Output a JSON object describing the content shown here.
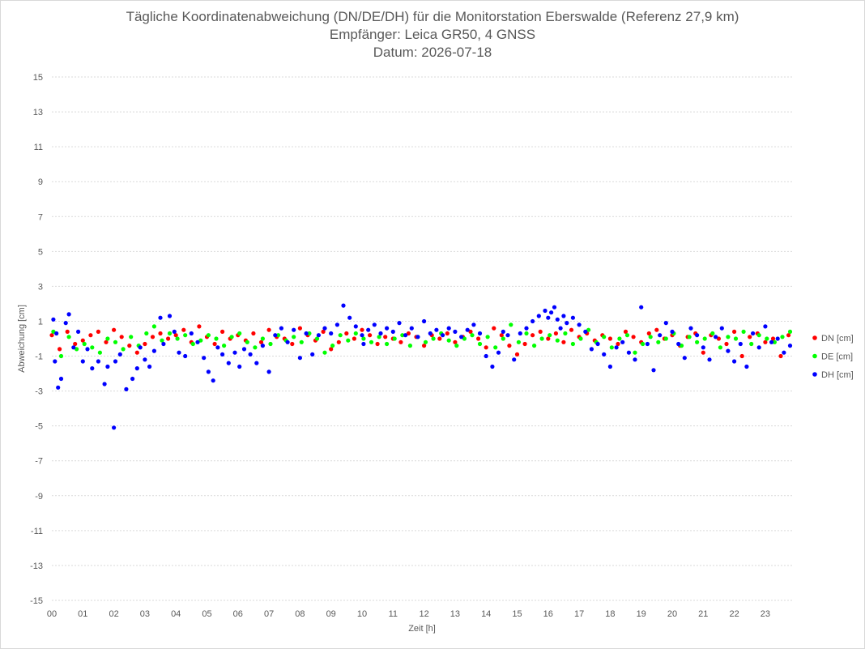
{
  "chart_data": {
    "type": "scatter",
    "title": "Tägliche Koordinatenabweichung (DN/DE/DH) für die Monitorstation Eberswalde (Referenz 27,9 km)",
    "subtitle": "Empfänger: Leica GR50, 4 GNSS",
    "date_line": "Datum: 2026-07-18",
    "xlabel": "Zeit [h]",
    "ylabel": "Abweichung [cm]",
    "xlim": [
      0,
      24
    ],
    "ylim": [
      -15,
      15
    ],
    "x_ticks": [
      "00",
      "01",
      "02",
      "03",
      "04",
      "05",
      "06",
      "07",
      "08",
      "09",
      "10",
      "11",
      "12",
      "13",
      "14",
      "15",
      "16",
      "17",
      "18",
      "19",
      "20",
      "21",
      "22",
      "23"
    ],
    "y_ticks": [
      15,
      13,
      11,
      9,
      7,
      5,
      3,
      1,
      -1,
      -3,
      -5,
      -7,
      -9,
      -11,
      -13,
      -15
    ],
    "grid": true,
    "legend_position": "right",
    "series": [
      {
        "name": "DN [cm]",
        "color": "#ff0000",
        "x": [
          0.0,
          0.25,
          0.5,
          0.75,
          1.0,
          1.25,
          1.5,
          1.75,
          2.0,
          2.25,
          2.5,
          2.75,
          3.0,
          3.25,
          3.5,
          3.75,
          4.0,
          4.25,
          4.5,
          4.75,
          5.0,
          5.25,
          5.5,
          5.75,
          6.0,
          6.25,
          6.5,
          6.75,
          7.0,
          7.25,
          7.5,
          7.75,
          8.0,
          8.25,
          8.5,
          8.75,
          9.0,
          9.25,
          9.5,
          9.75,
          10.0,
          10.25,
          10.5,
          10.75,
          11.0,
          11.25,
          11.5,
          11.75,
          12.0,
          12.25,
          12.5,
          12.75,
          13.0,
          13.25,
          13.5,
          13.75,
          14.0,
          14.25,
          14.5,
          14.75,
          15.0,
          15.25,
          15.5,
          15.75,
          16.0,
          16.25,
          16.5,
          16.75,
          17.0,
          17.25,
          17.5,
          17.75,
          18.0,
          18.25,
          18.5,
          18.75,
          19.0,
          19.25,
          19.5,
          19.75,
          20.0,
          20.25,
          20.5,
          20.75,
          21.0,
          21.25,
          21.5,
          21.75,
          22.0,
          22.25,
          22.5,
          22.75,
          23.0,
          23.25,
          23.5,
          23.75
        ],
        "y": [
          0.2,
          -0.6,
          0.4,
          -0.3,
          -0.1,
          0.2,
          0.4,
          -0.2,
          0.5,
          0.1,
          -0.4,
          -0.8,
          -0.3,
          0.1,
          0.3,
          0.0,
          0.2,
          0.5,
          -0.2,
          0.7,
          0.1,
          -0.3,
          0.4,
          0.0,
          0.2,
          -0.1,
          0.3,
          -0.2,
          0.5,
          0.1,
          0.0,
          -0.3,
          0.6,
          0.2,
          -0.1,
          0.4,
          -0.6,
          -0.2,
          0.3,
          0.0,
          0.5,
          0.2,
          -0.3,
          0.1,
          0.0,
          -0.2,
          0.3,
          0.1,
          -0.4,
          0.2,
          0.0,
          0.3,
          -0.2,
          0.1,
          0.4,
          0.0,
          -0.5,
          0.6,
          0.2,
          -0.4,
          -0.9,
          -0.3,
          0.2,
          0.4,
          0.0,
          0.3,
          -0.2,
          0.5,
          0.1,
          0.3,
          -0.1,
          0.2,
          0.0,
          -0.3,
          0.4,
          0.1,
          -0.2,
          0.3,
          0.5,
          0.0,
          0.2,
          -0.4,
          0.1,
          0.3,
          -0.8,
          0.2,
          0.0,
          -0.3,
          0.4,
          -1.0,
          0.1,
          0.3,
          -0.2,
          0.0,
          -1.0,
          0.2
        ]
      },
      {
        "name": "DE [cm]",
        "color": "#00ff00",
        "x": [
          0.05,
          0.3,
          0.55,
          0.8,
          1.05,
          1.3,
          1.55,
          1.8,
          2.05,
          2.3,
          2.55,
          2.8,
          3.05,
          3.3,
          3.55,
          3.8,
          4.05,
          4.3,
          4.55,
          4.8,
          5.05,
          5.3,
          5.55,
          5.8,
          6.05,
          6.3,
          6.55,
          6.8,
          7.05,
          7.3,
          7.55,
          7.8,
          8.05,
          8.3,
          8.55,
          8.8,
          9.05,
          9.3,
          9.55,
          9.8,
          10.05,
          10.3,
          10.55,
          10.8,
          11.05,
          11.3,
          11.55,
          11.8,
          12.05,
          12.3,
          12.55,
          12.8,
          13.05,
          13.3,
          13.55,
          13.8,
          14.05,
          14.3,
          14.55,
          14.8,
          15.05,
          15.3,
          15.55,
          15.8,
          16.05,
          16.3,
          16.55,
          16.8,
          17.05,
          17.3,
          17.55,
          17.8,
          18.05,
          18.3,
          18.55,
          18.8,
          19.05,
          19.3,
          19.55,
          19.8,
          20.05,
          20.3,
          20.55,
          20.8,
          21.05,
          21.3,
          21.55,
          21.8,
          22.05,
          22.3,
          22.55,
          22.8,
          23.05,
          23.3,
          23.55,
          23.8
        ],
        "y": [
          0.4,
          -1.0,
          0.1,
          -0.6,
          -0.3,
          -0.5,
          -0.8,
          0.0,
          -0.2,
          -0.6,
          0.1,
          -0.4,
          0.3,
          0.7,
          -0.1,
          0.3,
          0.0,
          0.2,
          -0.3,
          -0.1,
          0.2,
          0.0,
          -0.4,
          0.1,
          0.3,
          -0.2,
          -0.5,
          0.0,
          -0.3,
          0.2,
          -0.1,
          0.1,
          -0.2,
          0.3,
          0.0,
          -0.8,
          -0.4,
          0.2,
          -0.1,
          0.3,
          0.0,
          -0.2,
          0.1,
          -0.3,
          0.0,
          0.2,
          -0.4,
          0.1,
          -0.2,
          0.0,
          0.3,
          -0.1,
          -0.4,
          0.0,
          0.2,
          -0.3,
          0.1,
          -0.5,
          0.0,
          0.8,
          -0.2,
          0.3,
          -0.4,
          0.0,
          0.2,
          -0.1,
          0.3,
          -0.3,
          0.0,
          0.5,
          -0.2,
          0.1,
          -0.5,
          0.0,
          0.2,
          -0.8,
          -0.3,
          0.1,
          -0.2,
          0.0,
          0.3,
          -0.4,
          0.1,
          -0.2,
          0.0,
          0.3,
          -0.5,
          0.1,
          0.0,
          0.4,
          -0.3,
          0.2,
          0.0,
          -0.2,
          0.1,
          0.4
        ]
      },
      {
        "name": "DH [cm]",
        "color": "#0000ff",
        "x": [
          0.05,
          0.1,
          0.15,
          0.2,
          0.3,
          0.45,
          0.55,
          0.7,
          0.85,
          1.0,
          1.15,
          1.3,
          1.5,
          1.7,
          1.8,
          2.0,
          2.05,
          2.2,
          2.4,
          2.6,
          2.75,
          2.85,
          3.0,
          3.15,
          3.3,
          3.5,
          3.6,
          3.8,
          3.95,
          4.1,
          4.3,
          4.5,
          4.7,
          4.9,
          5.05,
          5.2,
          5.35,
          5.5,
          5.7,
          5.9,
          6.05,
          6.2,
          6.4,
          6.6,
          6.8,
          7.0,
          7.2,
          7.4,
          7.6,
          7.8,
          8.0,
          8.2,
          8.4,
          8.6,
          8.8,
          9.0,
          9.2,
          9.4,
          9.6,
          9.8,
          10.0,
          10.05,
          10.2,
          10.4,
          10.6,
          10.8,
          11.0,
          11.2,
          11.4,
          11.6,
          11.8,
          12.0,
          12.2,
          12.4,
          12.6,
          12.8,
          13.0,
          13.2,
          13.4,
          13.6,
          13.8,
          14.0,
          14.2,
          14.4,
          14.55,
          14.7,
          14.9,
          15.1,
          15.3,
          15.5,
          15.7,
          15.9,
          16.0,
          16.1,
          16.2,
          16.3,
          16.4,
          16.5,
          16.6,
          16.8,
          17.0,
          17.2,
          17.4,
          17.6,
          17.8,
          18.0,
          18.2,
          18.4,
          18.6,
          18.8,
          19.0,
          19.2,
          19.4,
          19.6,
          19.8,
          20.0,
          20.2,
          20.4,
          20.6,
          20.8,
          21.0,
          21.2,
          21.4,
          21.6,
          21.8,
          22.0,
          22.2,
          22.4,
          22.6,
          22.8,
          23.0,
          23.2,
          23.4,
          23.6,
          23.8
        ],
        "y": [
          1.1,
          -1.3,
          0.3,
          -2.8,
          -2.3,
          0.9,
          1.4,
          -0.5,
          0.4,
          -1.3,
          -0.6,
          -1.7,
          -1.3,
          -2.6,
          -1.6,
          -5.1,
          -1.3,
          -0.9,
          -2.9,
          -2.3,
          -1.7,
          -0.5,
          -1.2,
          -1.6,
          -0.7,
          1.2,
          -0.3,
          1.3,
          0.4,
          -0.8,
          -1.0,
          0.3,
          -0.2,
          -1.1,
          -1.9,
          -2.4,
          -0.5,
          -0.9,
          -1.4,
          -0.8,
          -1.6,
          -0.6,
          -0.9,
          -1.4,
          -0.4,
          -1.9,
          0.2,
          0.6,
          -0.2,
          0.5,
          -1.1,
          0.3,
          -0.9,
          0.2,
          0.6,
          0.3,
          0.8,
          1.9,
          1.2,
          0.7,
          0.2,
          -0.3,
          0.5,
          0.8,
          0.3,
          0.6,
          0.4,
          0.9,
          0.2,
          0.6,
          0.1,
          1.0,
          0.3,
          0.5,
          0.2,
          0.6,
          0.4,
          0.1,
          0.5,
          0.8,
          0.3,
          -1.0,
          -1.6,
          -0.8,
          0.4,
          0.2,
          -1.2,
          0.3,
          0.6,
          1.0,
          1.3,
          1.6,
          1.2,
          1.5,
          1.8,
          1.1,
          0.6,
          1.3,
          0.9,
          1.2,
          0.8,
          0.4,
          -0.6,
          -0.3,
          -0.9,
          -1.6,
          -0.5,
          -0.2,
          -0.8,
          -1.2,
          1.8,
          -0.3,
          -1.8,
          0.2,
          0.9,
          0.4,
          -0.3,
          -1.1,
          0.6,
          0.2,
          -0.5,
          -1.2,
          0.1,
          0.6,
          -0.7,
          -1.3,
          -0.3,
          -1.6,
          0.3,
          -0.5,
          0.7,
          -0.2,
          0.0,
          -0.8,
          -0.4
        ]
      }
    ]
  }
}
